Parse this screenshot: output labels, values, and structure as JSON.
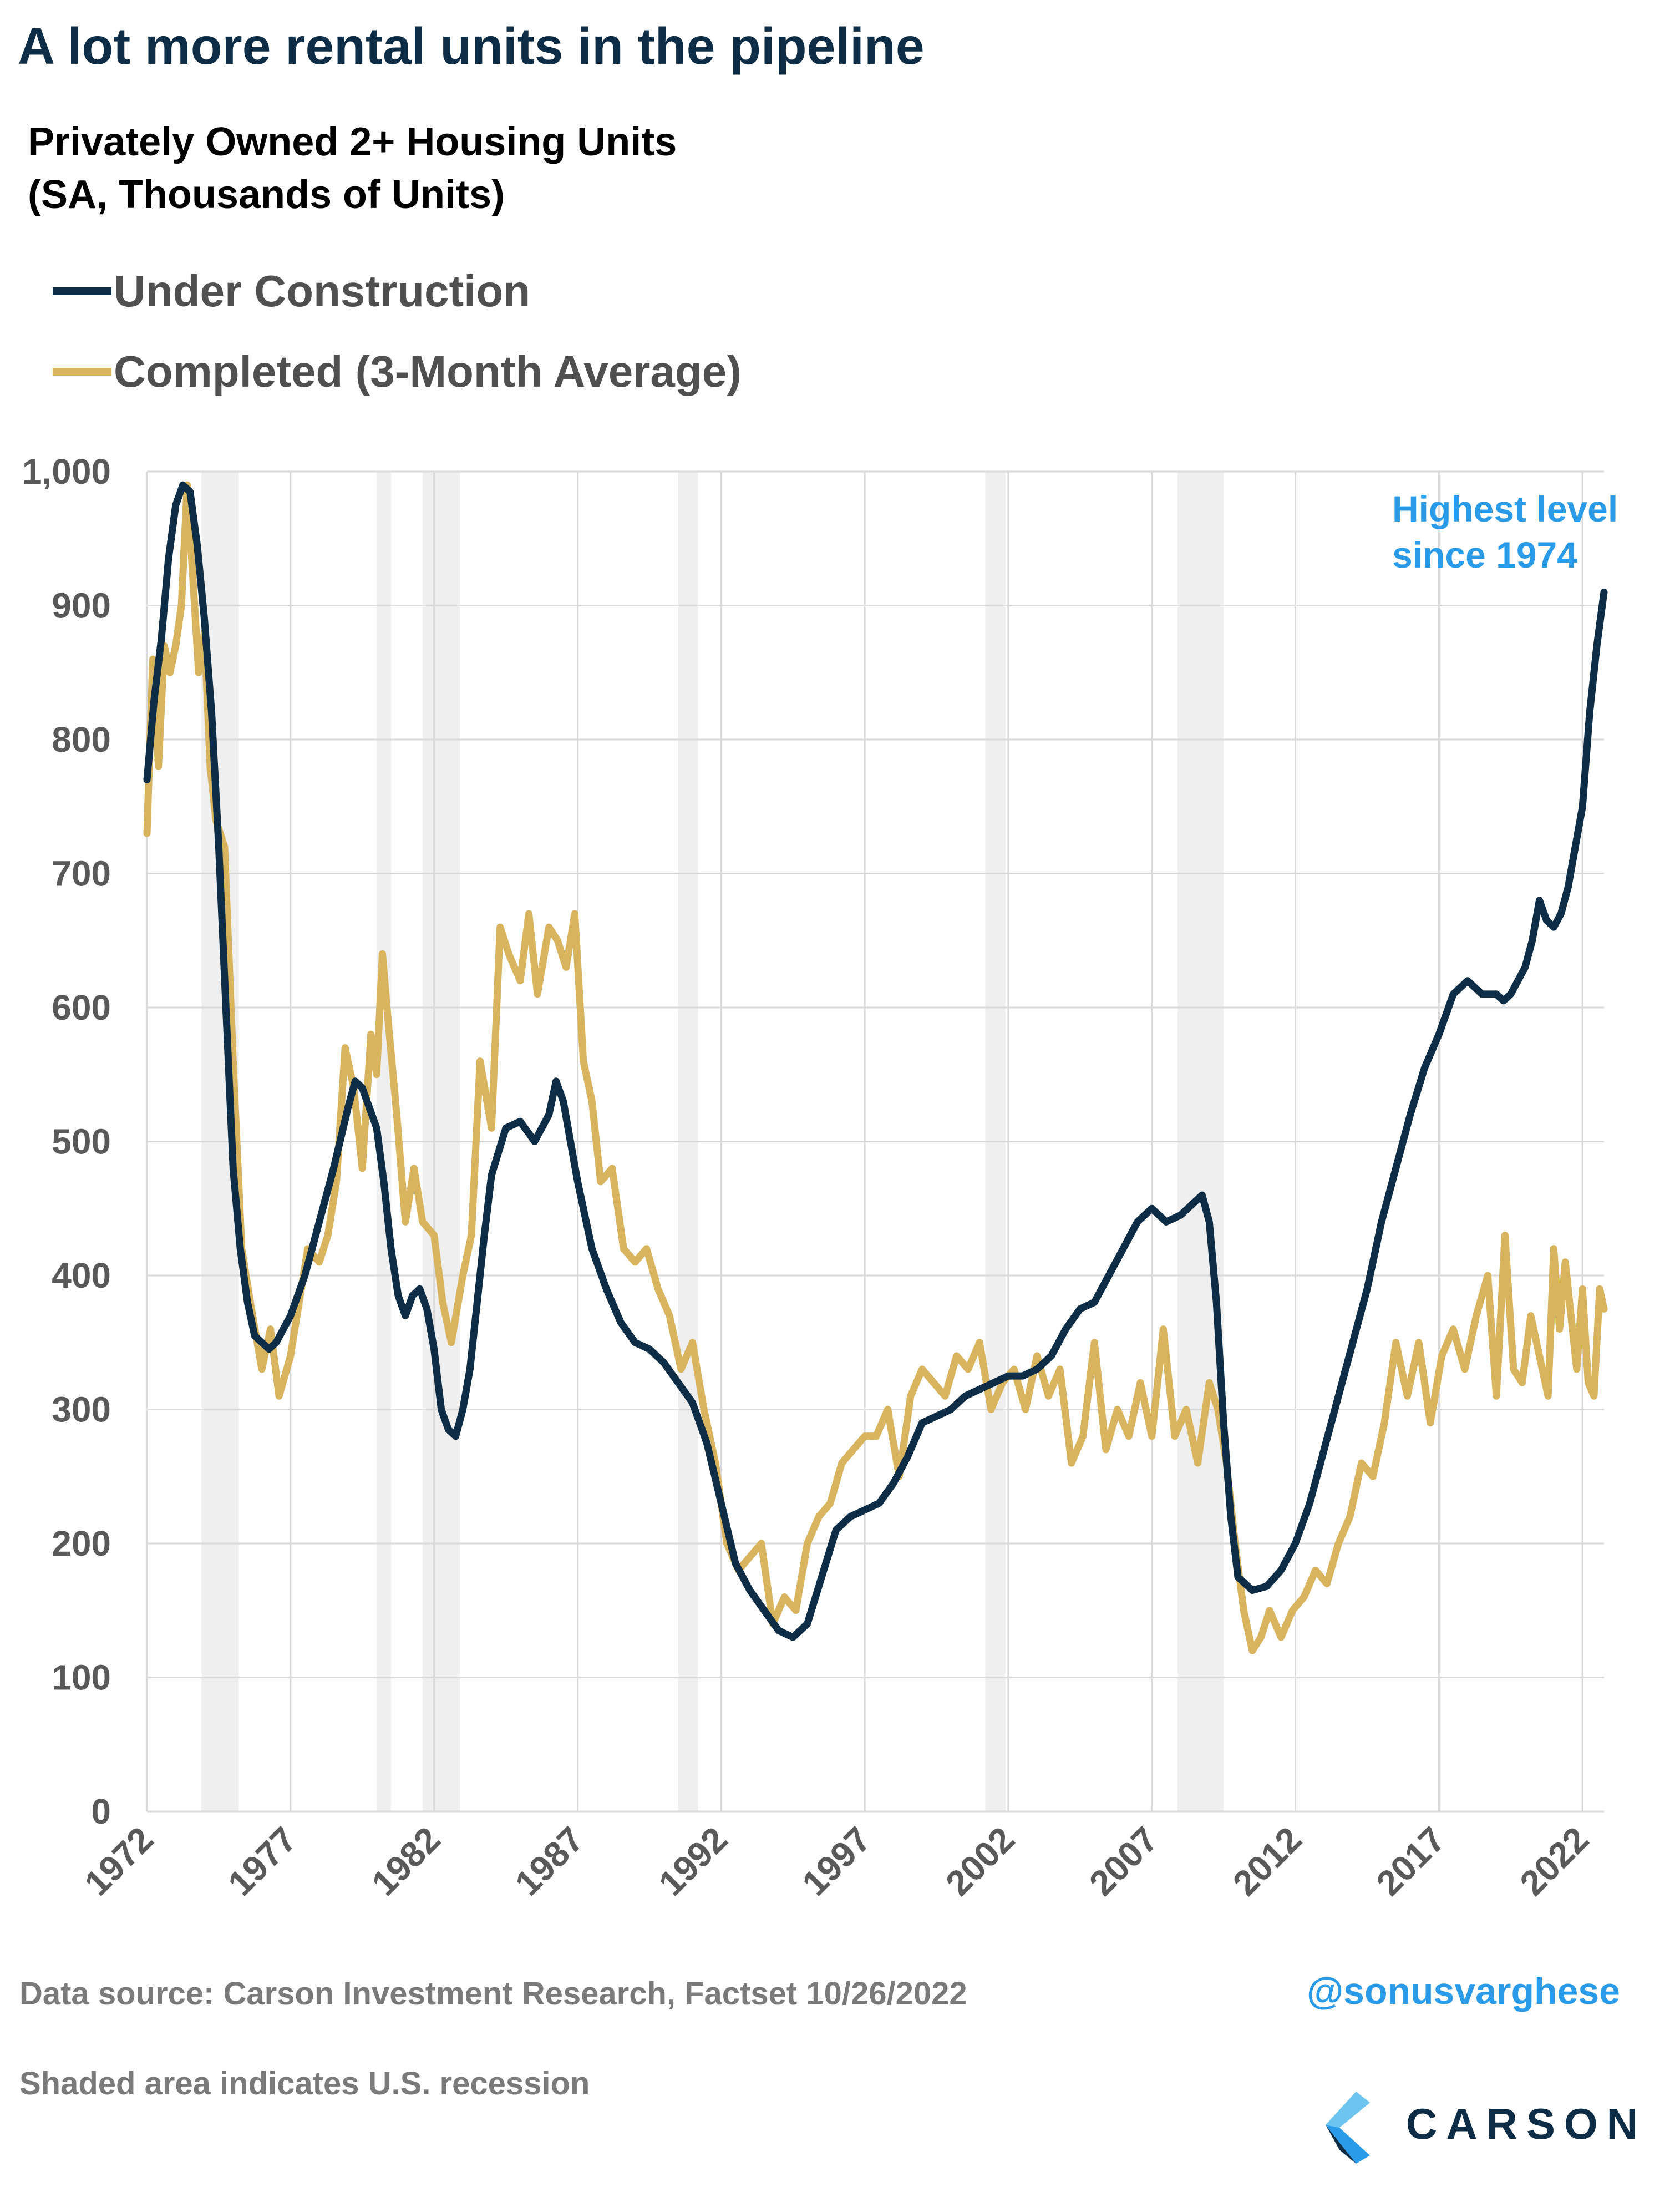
{
  "title": "A lot more rental units in the pipeline",
  "subtitle": {
    "line1": "Privately Owned 2+ Housing Units",
    "line2": "(SA, Thousands of Units)"
  },
  "legend": {
    "under_construction": "Under Construction",
    "completed": "Completed (3-Month Average)"
  },
  "annotation": {
    "line1": "Highest level",
    "line2": "since 1974",
    "color": "#2a9be8"
  },
  "footer": {
    "source": "Data source: Carson Investment Research, Factset   10/26/2022",
    "recession_note": "Shaded area indicates U.S. recession",
    "handle": "@sonusvarghese",
    "brand": "CARSON"
  },
  "colors": {
    "under_construction": "#0d2c45",
    "completed": "#d8b45e",
    "recession_shade": "#efefef",
    "grid": "#d9d9d9",
    "axis_text": "#595959"
  },
  "chart_data": {
    "type": "line",
    "ylim": [
      0,
      1000
    ],
    "xlim": [
      1972.0,
      2022.75
    ],
    "y_ticks": [
      0,
      100,
      200,
      300,
      400,
      500,
      600,
      700,
      800,
      900,
      1000
    ],
    "y_tick_labels": [
      "0",
      "100",
      "200",
      "300",
      "400",
      "500",
      "600",
      "700",
      "800",
      "900",
      "1,000"
    ],
    "x_ticks": [
      1972,
      1977,
      1982,
      1987,
      1992,
      1997,
      2002,
      2007,
      2012,
      2017,
      2022
    ],
    "x_tick_labels": [
      "1972",
      "1977",
      "1982",
      "1987",
      "1992",
      "1997",
      "2002",
      "2007",
      "2012",
      "2017",
      "2022"
    ],
    "recessions": [
      [
        1973.9,
        1975.2
      ],
      [
        1980.0,
        1980.5
      ],
      [
        1981.6,
        1982.9
      ],
      [
        1990.5,
        1991.2
      ],
      [
        2001.2,
        2001.9
      ],
      [
        2007.9,
        2009.5
      ]
    ],
    "series": [
      {
        "name": "Under Construction",
        "x": [
          1972.0,
          1972.25,
          1972.5,
          1972.75,
          1973.0,
          1973.25,
          1973.5,
          1973.75,
          1974.0,
          1974.25,
          1974.5,
          1974.75,
          1975.0,
          1975.25,
          1975.5,
          1975.75,
          1976.0,
          1976.25,
          1976.5,
          1976.75,
          1977.0,
          1977.5,
          1978.0,
          1978.5,
          1979.0,
          1979.25,
          1979.5,
          1980.0,
          1980.25,
          1980.5,
          1980.75,
          1981.0,
          1981.25,
          1981.5,
          1981.75,
          1982.0,
          1982.25,
          1982.5,
          1982.75,
          1983.0,
          1983.25,
          1983.5,
          1983.75,
          1984.0,
          1984.5,
          1985.0,
          1985.5,
          1986.0,
          1986.25,
          1986.5,
          1986.75,
          1987.0,
          1987.5,
          1988.0,
          1988.5,
          1989.0,
          1989.5,
          1990.0,
          1990.5,
          1991.0,
          1991.5,
          1992.0,
          1992.5,
          1993.0,
          1993.5,
          1994.0,
          1994.5,
          1995.0,
          1995.5,
          1996.0,
          1996.5,
          1997.0,
          1997.5,
          1998.0,
          1998.5,
          1999.0,
          1999.5,
          2000.0,
          2000.5,
          2001.0,
          2001.5,
          2002.0,
          2002.5,
          2003.0,
          2003.5,
          2004.0,
          2004.5,
          2005.0,
          2005.5,
          2006.0,
          2006.5,
          2007.0,
          2007.5,
          2008.0,
          2008.5,
          2008.75,
          2009.0,
          2009.25,
          2009.5,
          2009.75,
          2010.0,
          2010.5,
          2011.0,
          2011.5,
          2012.0,
          2012.5,
          2013.0,
          2013.5,
          2014.0,
          2014.5,
          2015.0,
          2015.5,
          2016.0,
          2016.5,
          2017.0,
          2017.5,
          2018.0,
          2018.5,
          2019.0,
          2019.25,
          2019.5,
          2020.0,
          2020.25,
          2020.5,
          2020.75,
          2021.0,
          2021.25,
          2021.5,
          2021.75,
          2022.0,
          2022.25,
          2022.5,
          2022.75
        ],
        "values": [
          770,
          830,
          875,
          935,
          975,
          990,
          985,
          945,
          890,
          820,
          720,
          600,
          480,
          420,
          380,
          355,
          350,
          345,
          350,
          360,
          370,
          400,
          440,
          480,
          525,
          545,
          540,
          510,
          470,
          420,
          385,
          370,
          385,
          390,
          375,
          345,
          300,
          285,
          280,
          300,
          330,
          380,
          430,
          475,
          510,
          515,
          500,
          520,
          545,
          530,
          500,
          470,
          420,
          390,
          365,
          350,
          345,
          335,
          320,
          305,
          275,
          230,
          185,
          165,
          150,
          135,
          130,
          140,
          175,
          210,
          220,
          225,
          230,
          245,
          265,
          290,
          295,
          300,
          310,
          315,
          320,
          325,
          325,
          330,
          340,
          360,
          375,
          380,
          400,
          420,
          440,
          450,
          440,
          445,
          455,
          460,
          440,
          380,
          290,
          220,
          175,
          165,
          168,
          180,
          200,
          230,
          270,
          310,
          350,
          390,
          440,
          480,
          520,
          555,
          580,
          610,
          620,
          610,
          610,
          605,
          610,
          630,
          650,
          680,
          665,
          660,
          670,
          690,
          720,
          750,
          820,
          870,
          910
        ]
      },
      {
        "name": "Completed (3-Month Average)",
        "x": [
          1972.0,
          1972.2,
          1972.4,
          1972.6,
          1972.8,
          1973.0,
          1973.2,
          1973.4,
          1973.6,
          1973.8,
          1974.0,
          1974.2,
          1974.4,
          1974.7,
          1975.0,
          1975.3,
          1975.6,
          1976.0,
          1976.3,
          1976.6,
          1977.0,
          1977.3,
          1977.6,
          1978.0,
          1978.3,
          1978.6,
          1978.9,
          1979.2,
          1979.5,
          1979.8,
          1980.0,
          1980.2,
          1980.4,
          1980.7,
          1981.0,
          1981.3,
          1981.6,
          1982.0,
          1982.3,
          1982.6,
          1983.0,
          1983.3,
          1983.6,
          1984.0,
          1984.3,
          1984.6,
          1985.0,
          1985.3,
          1985.6,
          1986.0,
          1986.3,
          1986.6,
          1986.9,
          1987.2,
          1987.5,
          1987.8,
          1988.2,
          1988.6,
          1989.0,
          1989.4,
          1989.8,
          1990.2,
          1990.6,
          1991.0,
          1991.4,
          1991.8,
          1992.2,
          1992.6,
          1993.0,
          1993.4,
          1993.8,
          1994.2,
          1994.6,
          1995.0,
          1995.4,
          1995.8,
          1996.2,
          1996.6,
          1997.0,
          1997.4,
          1997.8,
          1998.2,
          1998.6,
          1999.0,
          1999.4,
          1999.8,
          2000.2,
          2000.6,
          2001.0,
          2001.4,
          2001.8,
          2002.2,
          2002.6,
          2003.0,
          2003.4,
          2003.8,
          2004.2,
          2004.6,
          2005.0,
          2005.4,
          2005.8,
          2006.2,
          2006.6,
          2007.0,
          2007.4,
          2007.8,
          2008.2,
          2008.6,
          2009.0,
          2009.3,
          2009.6,
          2009.9,
          2010.2,
          2010.5,
          2010.8,
          2011.1,
          2011.5,
          2011.9,
          2012.3,
          2012.7,
          2013.1,
          2013.5,
          2013.9,
          2014.3,
          2014.7,
          2015.1,
          2015.5,
          2015.9,
          2016.3,
          2016.7,
          2017.1,
          2017.5,
          2017.9,
          2018.3,
          2018.7,
          2019.0,
          2019.3,
          2019.6,
          2019.9,
          2020.2,
          2020.5,
          2020.8,
          2021.0,
          2021.2,
          2021.4,
          2021.6,
          2021.8,
          2022.0,
          2022.2,
          2022.4,
          2022.6,
          2022.75
        ],
        "values": [
          730,
          860,
          780,
          870,
          850,
          870,
          900,
          990,
          920,
          850,
          880,
          780,
          740,
          720,
          560,
          420,
          380,
          330,
          360,
          310,
          340,
          380,
          420,
          410,
          430,
          470,
          570,
          540,
          480,
          580,
          550,
          640,
          590,
          520,
          440,
          480,
          440,
          430,
          380,
          350,
          400,
          430,
          560,
          510,
          660,
          640,
          620,
          670,
          610,
          660,
          650,
          630,
          670,
          560,
          530,
          470,
          480,
          420,
          410,
          420,
          390,
          370,
          330,
          350,
          300,
          260,
          200,
          180,
          190,
          200,
          140,
          160,
          150,
          200,
          220,
          230,
          260,
          270,
          280,
          280,
          300,
          250,
          310,
          330,
          320,
          310,
          340,
          330,
          350,
          300,
          320,
          330,
          300,
          340,
          310,
          330,
          260,
          280,
          350,
          270,
          300,
          280,
          320,
          280,
          360,
          280,
          300,
          260,
          320,
          300,
          260,
          200,
          150,
          120,
          130,
          150,
          130,
          150,
          160,
          180,
          170,
          200,
          220,
          260,
          250,
          290,
          350,
          310,
          350,
          290,
          340,
          360,
          330,
          370,
          400,
          310,
          430,
          330,
          320,
          370,
          340,
          310,
          420,
          360,
          410,
          370,
          330,
          390,
          320,
          310,
          390,
          375
        ]
      }
    ]
  }
}
